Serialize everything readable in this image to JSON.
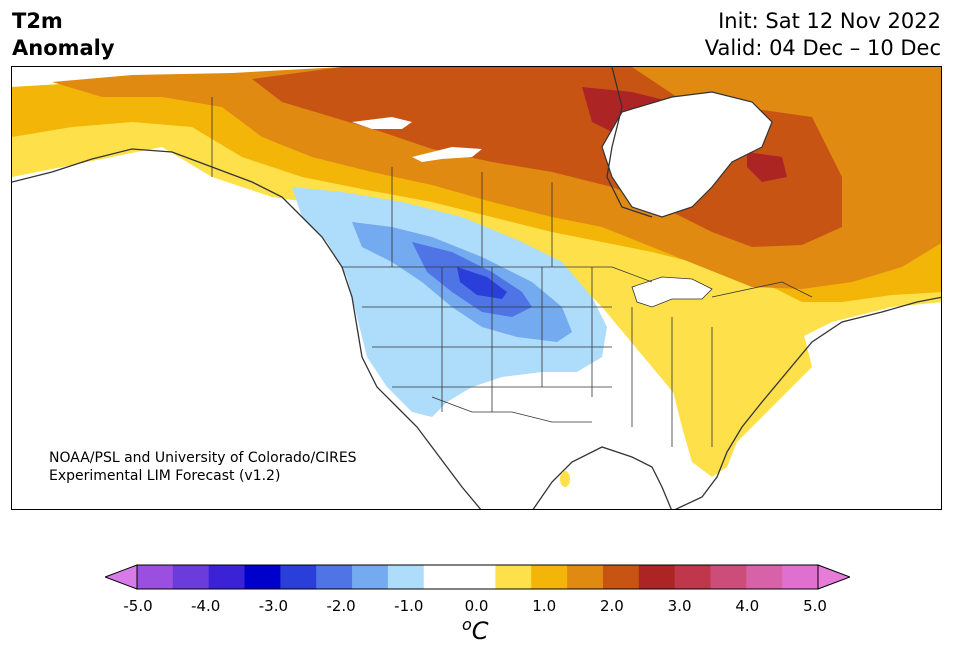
{
  "title": {
    "left_line1": "T2m",
    "left_line2": "Anomaly",
    "init": "Init: Sat 12 Nov 2022",
    "valid": "Valid: 04 Dec – 10 Dec"
  },
  "credit": {
    "line1": "NOAA/PSL and University of Colorado/CIRES",
    "line2": "Experimental LIM Forecast (v1.2)"
  },
  "colorbar": {
    "unit_base": "C",
    "unit_sup": "o",
    "tick_labels": [
      "-5.0",
      "-4.0",
      "-3.0",
      "-2.0",
      "-1.0",
      "0.0",
      "1.0",
      "2.0",
      "3.0",
      "4.0",
      "5.0"
    ],
    "colors": [
      "#9b4fe0",
      "#6c3bdc",
      "#3b22d6",
      "#0000cc",
      "#2a3fd9",
      "#4f74e6",
      "#74aaf0",
      "#aedcfb",
      "#ffffff",
      "#ffffff",
      "#fde04a",
      "#f3b507",
      "#e08a12",
      "#c85414",
      "#ad2424",
      "#c0364a",
      "#cc4c7a",
      "#d862a8",
      "#e070cf"
    ],
    "extend_low_color": "#d67be8",
    "extend_high_color": "#e67bd8"
  },
  "map": {
    "region": "North America",
    "ocean_color": "#ffffff",
    "coast_color": "#333333"
  }
}
